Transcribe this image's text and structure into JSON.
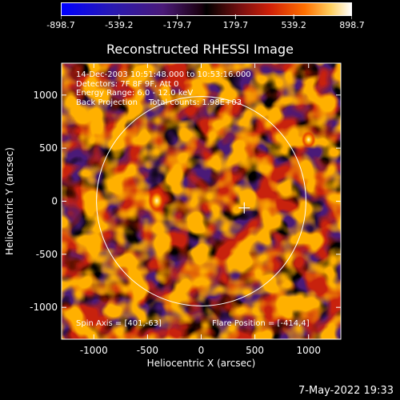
{
  "colorbar": {
    "labels": [
      "-898.7",
      "-539.2",
      "-179.7",
      "179.7",
      "539.2",
      "898.7"
    ]
  },
  "title": "Reconstructed RHESSI Image",
  "info": {
    "line1": "14-Dec-2003 10:51:48.000 to 10:53:16.000",
    "line2": "Detectors: 7F 8F 9F, Att 0",
    "line3": "Energy Range: 6.0 - 12.0 keV",
    "line4": "Back Projection",
    "line4b": "Total counts: 1.98E+03",
    "spin_axis": "Spin Axis = [401,-63]",
    "flare_position": "Flare Position = [-414,4]"
  },
  "footer": {
    "date": "7-May-2022 19:33"
  },
  "chart_data": {
    "type": "heatmap",
    "title": "Reconstructed RHESSI Image",
    "xlabel": "Heliocentric X (arcsec)",
    "ylabel": "Heliocentric Y (arcsec)",
    "xlim": [
      -1300,
      1300
    ],
    "ylim": [
      -1300,
      1300
    ],
    "xticks": [
      -1000,
      -500,
      0,
      500,
      1000
    ],
    "yticks": [
      1000,
      500,
      0,
      -500,
      -1000
    ],
    "colorbar_range": [
      -898.7,
      898.7
    ],
    "solar_disk_radius": 975,
    "marker_position": [
      401,
      -63
    ],
    "hot_spots": [
      {
        "x": -414,
        "y": 4
      },
      {
        "x": 1000,
        "y": 580
      }
    ]
  }
}
